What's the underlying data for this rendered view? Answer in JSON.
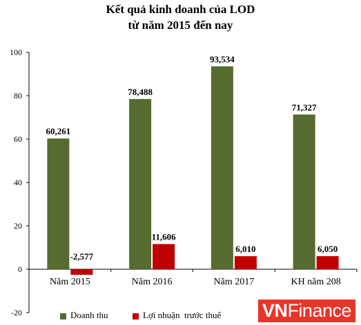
{
  "chart_data": {
    "type": "bar",
    "title_line1": "Kết quả kinh doanh của LOD",
    "title_line2": "từ năm 2015 đến nay",
    "categories": [
      "Năm 2015",
      "Năm 2016",
      "Năm 2017",
      "KH năm 208"
    ],
    "series": [
      {
        "name": "Doanh thu",
        "color": "#556b2f",
        "values": [
          60.261,
          78.488,
          93.534,
          71.327
        ],
        "labels": [
          "60,261",
          "78,488",
          "93,534",
          "71,327"
        ]
      },
      {
        "name": "Lợi nhuận  trước thuế",
        "color": "#c00000",
        "values": [
          -2.577,
          11.606,
          6.01,
          6.05
        ],
        "labels": [
          "-2,577",
          "11,606",
          "6,010",
          "6,050"
        ]
      }
    ],
    "ylim": [
      -20,
      100
    ],
    "yticks": [
      -20,
      0,
      20,
      40,
      60,
      80,
      100
    ],
    "xlabel": "",
    "ylabel": "",
    "grid": false,
    "legend_position": "bottom-left"
  },
  "watermark": {
    "part1": "VN",
    "part2": "Finance"
  }
}
